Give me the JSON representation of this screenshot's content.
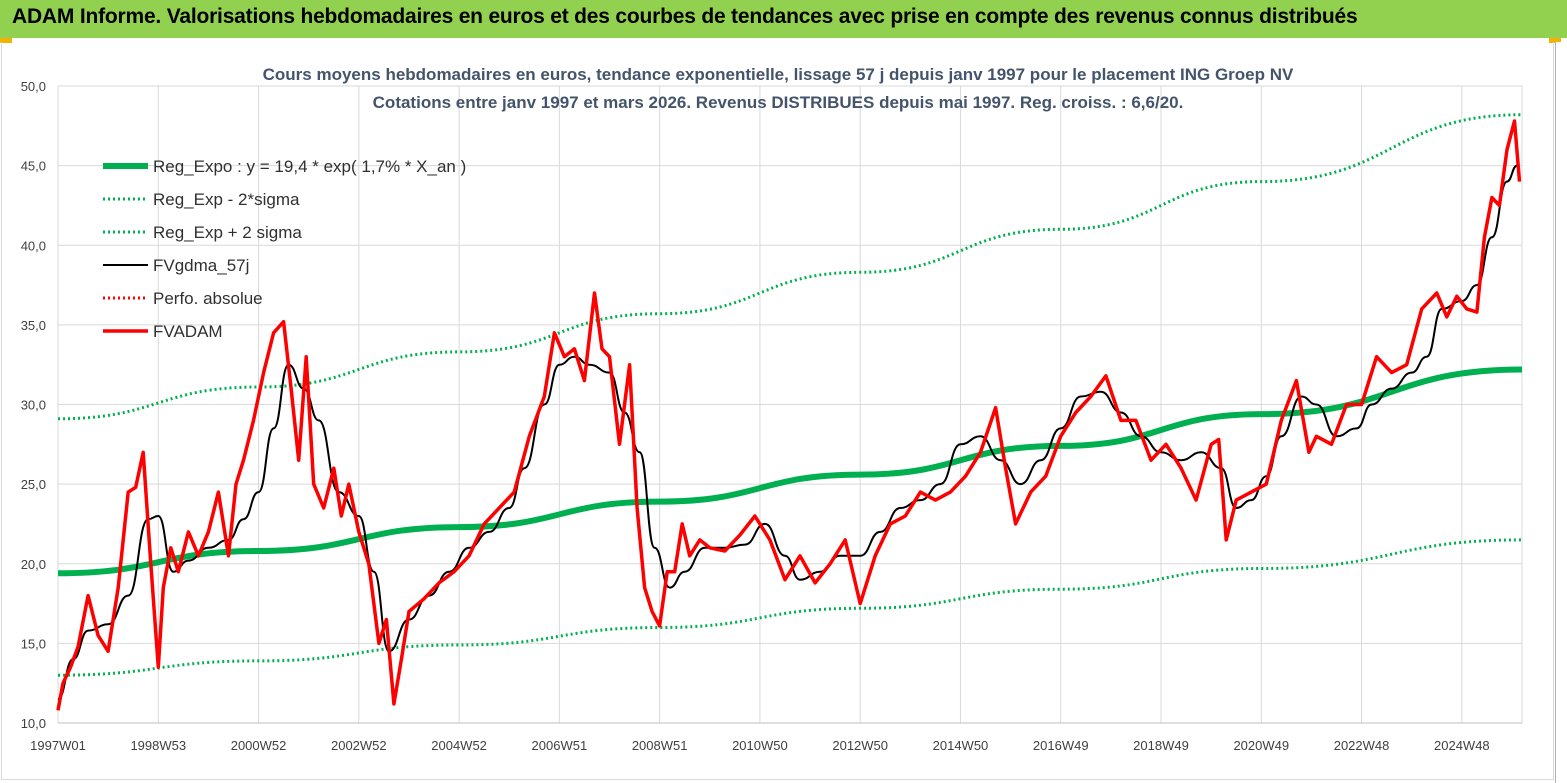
{
  "header": {
    "title": "ADAM Informe. Valorisations hebdomadaires en euros et des courbes de tendances avec prise en compte des revenus connus distribués"
  },
  "colors": {
    "banner": "#92d050",
    "accent": "#f0b400",
    "regression": "#00b050",
    "smoothed": "#000000",
    "price": "#ff0000"
  },
  "chart_data": {
    "type": "line",
    "title": "Cours moyens hebdomadaires en euros, tendance exponentielle, lissage 57 j depuis janv 1997 pour le placement ING Groep NV",
    "subtitle": "Cotations entre janv 1997 et mars 2026. Revenus DISTRIBUES depuis mai 1997. Reg. croiss. : 6,6/20.",
    "xlabel": "",
    "ylabel": "",
    "ylim": [
      10,
      50
    ],
    "yticks": [
      "10,0",
      "15,0",
      "20,0",
      "25,0",
      "30,0",
      "35,0",
      "40,0",
      "45,0",
      "50,0"
    ],
    "xlim": [
      1997.0,
      2026.2
    ],
    "xticks": [
      {
        "label": "1997W01",
        "x": 1997.0
      },
      {
        "label": "1998W53",
        "x": 1999.0
      },
      {
        "label": "2000W52",
        "x": 2001.0
      },
      {
        "label": "2002W52",
        "x": 2003.0
      },
      {
        "label": "2004W52",
        "x": 2005.0
      },
      {
        "label": "2006W51",
        "x": 2007.0
      },
      {
        "label": "2008W51",
        "x": 2009.0
      },
      {
        "label": "2010W50",
        "x": 2011.0
      },
      {
        "label": "2012W50",
        "x": 2013.0
      },
      {
        "label": "2014W50",
        "x": 2015.0
      },
      {
        "label": "2016W49",
        "x": 2017.0
      },
      {
        "label": "2018W49",
        "x": 2019.0
      },
      {
        "label": "2020W49",
        "x": 2021.0
      },
      {
        "label": "2022W48",
        "x": 2023.0
      },
      {
        "label": "2024W48",
        "x": 2025.0
      }
    ],
    "grid": true,
    "legend_position": "top-left",
    "series": [
      {
        "name": "Reg_Expo : y = 19,4 * exp( 1,7% *  X_an )",
        "style": "thick-solid",
        "color": "#00b050",
        "x": [
          1997.0,
          2001.0,
          2005.0,
          2009.0,
          2013.0,
          2017.0,
          2021.0,
          2026.2
        ],
        "y": [
          19.4,
          20.8,
          22.3,
          23.9,
          25.6,
          27.4,
          29.4,
          32.2
        ]
      },
      {
        "name": "Reg_Exp - 2*sigma",
        "style": "dotted",
        "color": "#00b050",
        "x": [
          1997.0,
          2001.0,
          2005.0,
          2009.0,
          2013.0,
          2017.0,
          2021.0,
          2026.2
        ],
        "y": [
          13.0,
          13.9,
          14.9,
          16.0,
          17.2,
          18.4,
          19.7,
          21.5
        ]
      },
      {
        "name": "Reg_Exp + 2 sigma",
        "style": "dotted",
        "color": "#00b050",
        "x": [
          1997.0,
          2001.0,
          2005.0,
          2009.0,
          2013.0,
          2017.0,
          2021.0,
          2026.2
        ],
        "y": [
          29.1,
          31.1,
          33.3,
          35.7,
          38.3,
          41.0,
          44.0,
          48.2
        ]
      },
      {
        "name": "FVgdma_57j",
        "style": "thin-solid",
        "color": "#000000",
        "x": [
          1997.0,
          1997.3,
          1997.6,
          1998.0,
          1998.4,
          1998.8,
          1999.0,
          1999.3,
          1999.6,
          2000.0,
          2000.4,
          2000.7,
          2001.0,
          2001.3,
          2001.6,
          2001.9,
          2002.2,
          2002.6,
          2003.0,
          2003.3,
          2003.6,
          2004.0,
          2004.4,
          2004.8,
          2005.2,
          2005.6,
          2006.0,
          2006.3,
          2006.7,
          2007.0,
          2007.3,
          2007.6,
          2008.0,
          2008.3,
          2008.6,
          2008.9,
          2009.2,
          2009.5,
          2009.9,
          2010.3,
          2010.7,
          2011.1,
          2011.5,
          2011.8,
          2012.2,
          2012.6,
          2013.0,
          2013.4,
          2013.8,
          2014.2,
          2014.6,
          2015.0,
          2015.4,
          2015.8,
          2016.2,
          2016.6,
          2017.0,
          2017.4,
          2017.8,
          2018.2,
          2018.6,
          2019.0,
          2019.4,
          2019.8,
          2020.2,
          2020.5,
          2020.8,
          2021.1,
          2021.4,
          2021.8,
          2022.1,
          2022.5,
          2022.9,
          2023.2,
          2023.6,
          2024.0,
          2024.3,
          2024.6,
          2025.0,
          2025.3,
          2025.6,
          2025.9,
          2026.1
        ],
        "y": [
          11.5,
          14.0,
          15.8,
          16.2,
          18.0,
          22.8,
          23.0,
          19.5,
          20.2,
          21.0,
          21.5,
          22.8,
          24.5,
          28.5,
          32.5,
          31.0,
          29.0,
          24.5,
          23.0,
          19.5,
          14.5,
          16.5,
          18.0,
          19.5,
          21.0,
          22.0,
          23.5,
          26.0,
          30.0,
          32.5,
          33.0,
          32.5,
          32.0,
          29.5,
          27.0,
          21.0,
          18.5,
          19.5,
          21.0,
          21.0,
          21.2,
          22.5,
          20.5,
          19.0,
          19.5,
          20.5,
          20.5,
          22.0,
          23.5,
          24.0,
          25.0,
          27.5,
          28.0,
          26.5,
          25.0,
          26.5,
          28.5,
          30.5,
          30.8,
          29.5,
          28.0,
          27.0,
          26.5,
          27.0,
          26.0,
          23.5,
          24.0,
          25.5,
          28.0,
          30.5,
          30.0,
          28.0,
          28.5,
          30.0,
          31.0,
          32.0,
          33.0,
          36.0,
          36.5,
          37.5,
          40.5,
          44.0,
          45.0
        ]
      },
      {
        "name": "Perfo. absolue",
        "style": "dotted",
        "color": "#ff0000",
        "x": [],
        "y": []
      },
      {
        "name": "FVADAM",
        "style": "thick-solid",
        "color": "#ff0000",
        "x": [
          1997.0,
          1997.1,
          1997.25,
          1997.4,
          1997.6,
          1997.8,
          1998.0,
          1998.2,
          1998.4,
          1998.55,
          1998.7,
          1998.85,
          1999.0,
          1999.1,
          1999.25,
          1999.4,
          1999.6,
          1999.8,
          2000.0,
          2000.2,
          2000.4,
          2000.55,
          2000.7,
          2000.9,
          2001.1,
          2001.3,
          2001.5,
          2001.65,
          2001.8,
          2001.95,
          2002.1,
          2002.3,
          2002.5,
          2002.65,
          2002.8,
          2003.0,
          2003.2,
          2003.4,
          2003.55,
          2003.7,
          2003.85,
          2004.0,
          2004.3,
          2004.6,
          2004.9,
          2005.2,
          2005.5,
          2005.8,
          2006.1,
          2006.4,
          2006.7,
          2006.9,
          2007.1,
          2007.3,
          2007.5,
          2007.7,
          2007.85,
          2008.0,
          2008.2,
          2008.4,
          2008.55,
          2008.7,
          2008.85,
          2009.0,
          2009.15,
          2009.3,
          2009.45,
          2009.6,
          2009.8,
          2010.0,
          2010.3,
          2010.6,
          2010.9,
          2011.2,
          2011.5,
          2011.8,
          2012.1,
          2012.4,
          2012.7,
          2013.0,
          2013.3,
          2013.6,
          2013.9,
          2014.2,
          2014.5,
          2014.8,
          2015.1,
          2015.4,
          2015.7,
          2015.9,
          2016.1,
          2016.4,
          2016.7,
          2017.0,
          2017.3,
          2017.6,
          2017.9,
          2018.2,
          2018.5,
          2018.8,
          2019.1,
          2019.4,
          2019.7,
          2020.0,
          2020.15,
          2020.3,
          2020.5,
          2020.8,
          2021.1,
          2021.4,
          2021.7,
          2021.95,
          2022.1,
          2022.4,
          2022.7,
          2023.0,
          2023.3,
          2023.6,
          2023.9,
          2024.2,
          2024.5,
          2024.7,
          2024.9,
          2025.1,
          2025.3,
          2025.45,
          2025.6,
          2025.75,
          2025.9,
          2026.05,
          2026.15
        ],
        "y": [
          10.8,
          12.5,
          13.5,
          14.8,
          18.0,
          15.5,
          14.5,
          18.5,
          24.5,
          24.8,
          27.0,
          20.0,
          13.5,
          18.5,
          21.0,
          19.5,
          22.0,
          20.5,
          22.0,
          24.5,
          20.5,
          25.0,
          26.5,
          29.0,
          32.0,
          34.5,
          35.2,
          31.0,
          26.5,
          33.0,
          25.0,
          23.5,
          26.0,
          23.0,
          25.0,
          22.0,
          20.0,
          15.0,
          16.5,
          11.2,
          14.0,
          17.0,
          17.8,
          18.8,
          19.5,
          20.5,
          22.5,
          23.5,
          24.5,
          28.0,
          30.5,
          34.5,
          33.0,
          33.5,
          31.5,
          37.0,
          33.5,
          33.0,
          27.5,
          32.5,
          23.5,
          18.5,
          17.0,
          16.1,
          19.5,
          19.5,
          22.5,
          20.5,
          21.5,
          21.0,
          20.8,
          21.8,
          23.0,
          21.5,
          19.0,
          20.5,
          18.8,
          20.0,
          21.5,
          17.5,
          20.5,
          22.5,
          23.0,
          24.5,
          24.0,
          24.5,
          25.5,
          27.0,
          29.8,
          26.0,
          22.5,
          24.5,
          25.5,
          28.0,
          29.5,
          30.5,
          31.8,
          29.0,
          29.0,
          26.5,
          27.5,
          26.0,
          24.0,
          27.5,
          27.8,
          21.5,
          24.0,
          24.5,
          25.0,
          29.0,
          31.5,
          27.0,
          28.0,
          27.5,
          30.0,
          30.0,
          33.0,
          32.0,
          32.5,
          36.0,
          37.0,
          35.5,
          36.8,
          36.0,
          35.8,
          40.5,
          43.0,
          42.5,
          46.0,
          47.8,
          44.0
        ]
      }
    ]
  }
}
